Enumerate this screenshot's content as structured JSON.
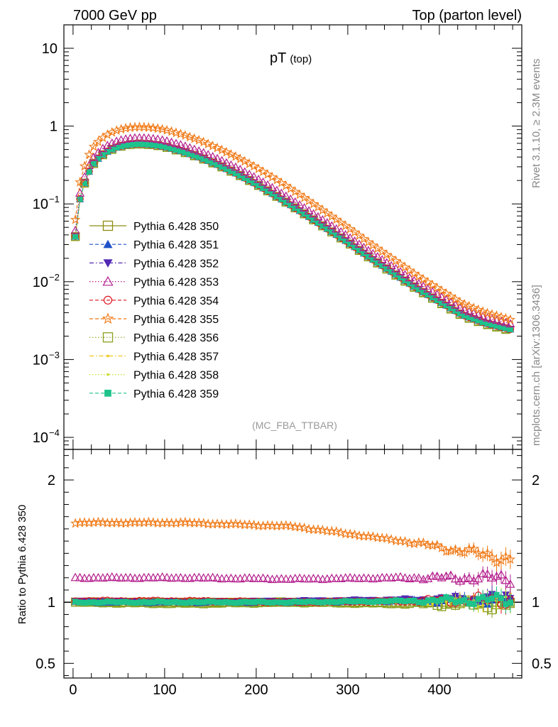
{
  "header": {
    "left": "7000 GeV pp",
    "right": "Top (parton level)"
  },
  "side": {
    "rivet": "Rivet 3.1.10, ≥ 2.3M events",
    "mcplots": "mcplots.cern.ch [arXiv:1306.3436]"
  },
  "chart_data": {
    "type": "line",
    "title_main": "pT",
    "title_sub": "(top)",
    "watermark": "(MC_FBA_TTBAR)",
    "x_ticks": [
      0,
      100,
      200,
      300,
      400
    ],
    "xlim": [
      -10,
      490
    ],
    "y_main_scale": "log",
    "y_main_lim": [
      7e-05,
      20
    ],
    "y_main_ticks": [
      {
        "value": 10,
        "label": "10"
      },
      {
        "value": 1,
        "label": "1"
      },
      {
        "value": 0.1,
        "label": "10",
        "exp": "−1"
      },
      {
        "value": 0.01,
        "label": "10",
        "exp": "−2"
      },
      {
        "value": 0.001,
        "label": "10",
        "exp": "−3"
      },
      {
        "value": 0.0001,
        "label": "10",
        "exp": "−4"
      }
    ],
    "ratio_ylabel": "Ratio to Pythia 6.428 350",
    "ratio_ylim": [
      0.38,
      2.25
    ],
    "ratio_ticks": [
      {
        "value": 2,
        "label": "2"
      },
      {
        "value": 1,
        "label": "1"
      },
      {
        "value": 0.5,
        "label": "0.5"
      }
    ],
    "reference_shape": {
      "x": [
        2.5,
        7.5,
        12.5,
        17.5,
        22.5,
        30,
        40,
        50,
        60,
        70,
        80,
        90,
        100,
        120,
        140,
        160,
        180,
        200,
        225,
        250,
        275,
        300,
        325,
        350,
        375,
        400,
        425,
        450,
        477.5
      ],
      "y": [
        0.038,
        0.115,
        0.185,
        0.26,
        0.33,
        0.41,
        0.49,
        0.545,
        0.575,
        0.59,
        0.585,
        0.57,
        0.545,
        0.47,
        0.39,
        0.31,
        0.24,
        0.18,
        0.12,
        0.078,
        0.05,
        0.032,
        0.02,
        0.0128,
        0.0082,
        0.0055,
        0.0037,
        0.0029,
        0.0024
      ]
    },
    "series": [
      {
        "name": "Pythia 6.428 350",
        "color": "#8c8c14",
        "marker": "open-square",
        "dash": "solid",
        "ratio": [
          1.0,
          1.0,
          1.0,
          1.0,
          1.0
        ]
      },
      {
        "name": "Pythia 6.428 351",
        "color": "#1f50c8",
        "marker": "filled-triangle-up",
        "dash": "dashed",
        "ratio": [
          1.0,
          1.0,
          1.0,
          1.01,
          1.02
        ]
      },
      {
        "name": "Pythia 6.428 352",
        "color": "#5028b4",
        "marker": "filled-triangle-down",
        "dash": "dashdot",
        "ratio": [
          1.01,
          1.0,
          1.01,
          1.02,
          1.03
        ]
      },
      {
        "name": "Pythia 6.428 353",
        "color": "#b41e8c",
        "marker": "open-triangle-up",
        "dash": "dotted",
        "ratio": [
          1.2,
          1.2,
          1.19,
          1.2,
          1.2
        ]
      },
      {
        "name": "Pythia 6.428 354",
        "color": "#dc141e",
        "marker": "open-circle",
        "dash": "dashed",
        "ratio": [
          1.01,
          1.01,
          1.0,
          1.01,
          1.02
        ]
      },
      {
        "name": "Pythia 6.428 355",
        "color": "#f07814",
        "marker": "open-star",
        "dash": "dashed",
        "ratio": [
          1.65,
          1.65,
          1.62,
          1.5,
          1.35
        ]
      },
      {
        "name": "Pythia 6.428 356",
        "color": "#8ca01e",
        "marker": "open-square",
        "dash": "dotted",
        "ratio": [
          1.0,
          0.99,
          1.0,
          0.99,
          0.98
        ]
      },
      {
        "name": "Pythia 6.428 357",
        "color": "#f0c81e",
        "marker": "small-dot",
        "dash": "dashdot",
        "ratio": [
          1.0,
          1.0,
          1.0,
          1.0,
          1.02
        ]
      },
      {
        "name": "Pythia 6.428 358",
        "color": "#c8dc28",
        "marker": "small-dot",
        "dash": "dotted",
        "ratio": [
          1.0,
          1.0,
          1.0,
          1.0,
          1.01
        ]
      },
      {
        "name": "Pythia 6.428 359",
        "color": "#1ec38c",
        "marker": "filled-square",
        "dash": "dashed",
        "ratio": [
          1.0,
          1.0,
          1.0,
          1.01,
          1.02
        ]
      }
    ]
  }
}
